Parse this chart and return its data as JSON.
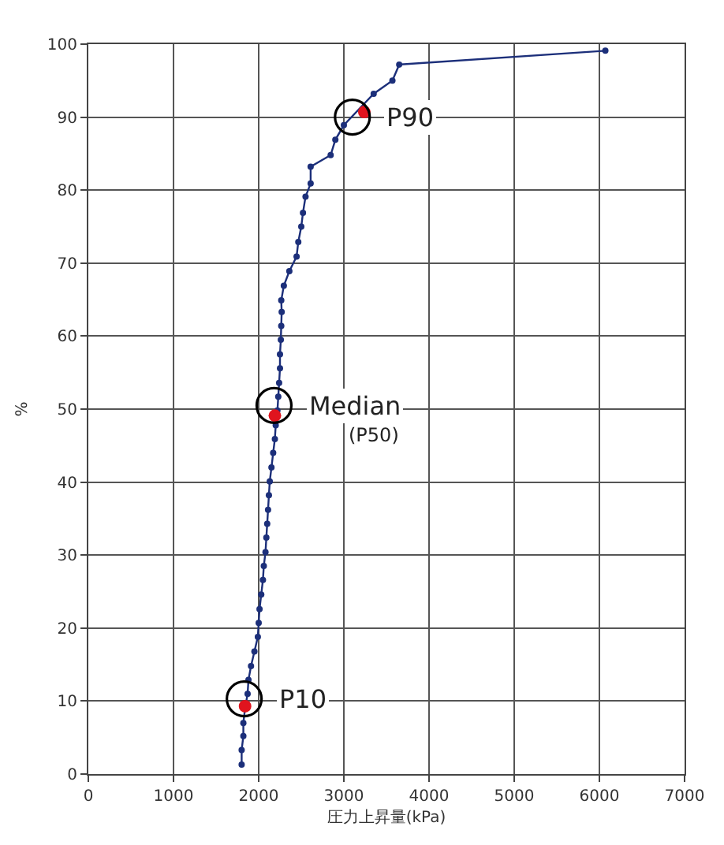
{
  "chart_data": {
    "type": "line",
    "xlabel": "圧力上昇量(kPa)",
    "ylabel": "%",
    "xlim": [
      0,
      7000
    ],
    "xticks": [
      0,
      1000,
      2000,
      3000,
      4000,
      5000,
      6000,
      7000
    ],
    "ylim": [
      0,
      100
    ],
    "yticks": [
      0,
      10,
      20,
      30,
      40,
      50,
      60,
      70,
      80,
      90,
      100
    ],
    "grid": true,
    "marker": "circle",
    "line_style": "solid",
    "series": [
      {
        "color": "#1c2f7a",
        "x": [
          1800,
          1800,
          1820,
          1820,
          1840,
          1870,
          1880,
          1910,
          1950,
          1990,
          2000,
          2010,
          2030,
          2050,
          2060,
          2080,
          2090,
          2100,
          2110,
          2120,
          2130,
          2150,
          2170,
          2190,
          2200,
          2220,
          2230,
          2240,
          2250,
          2250,
          2260,
          2265,
          2270,
          2265,
          2295,
          2360,
          2445,
          2465,
          2500,
          2520,
          2550,
          2610,
          2610,
          2845,
          2900,
          3000,
          3350,
          3570,
          3650,
          6070
        ],
        "values": [
          1.3,
          3.3,
          5.2,
          7.0,
          9.0,
          11.0,
          12.9,
          14.8,
          16.8,
          18.8,
          20.7,
          22.6,
          24.6,
          26.6,
          28.5,
          30.4,
          32.4,
          34.3,
          36.2,
          38.2,
          40.1,
          42.0,
          44.0,
          45.9,
          47.8,
          49.8,
          51.7,
          53.6,
          55.6,
          57.5,
          59.5,
          61.4,
          63.3,
          64.9,
          66.9,
          68.9,
          70.9,
          72.9,
          75.0,
          76.9,
          79.1,
          80.9,
          83.2,
          84.8,
          86.9,
          88.9,
          93.2,
          95.0,
          97.2,
          99.1
        ]
      },
      {
        "type": "scatter",
        "color": "#e0141e",
        "x": [
          1840,
          2190,
          3240
        ],
        "values": [
          9.3,
          49.1,
          90.7
        ]
      }
    ],
    "annotations": [
      {
        "text": "P90",
        "x": 3100,
        "y": 90
      },
      {
        "text": "Median",
        "x": 2180,
        "y": 50.5
      },
      "(P50)",
      {
        "text": "P10",
        "x": 1830,
        "y": 10.3
      }
    ]
  }
}
